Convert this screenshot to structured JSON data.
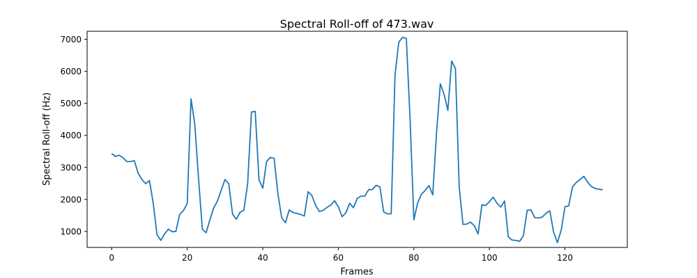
{
  "chart_data": {
    "type": "line",
    "title": "Spectral Roll-off of 473.wav",
    "xlabel": "Frames",
    "ylabel": "Spectral Roll-off (Hz)",
    "xlim": [
      -6.5,
      136.5
    ],
    "ylim": [
      500,
      7250
    ],
    "xticks": [
      0,
      20,
      40,
      60,
      80,
      100,
      120
    ],
    "yticks": [
      1000,
      2000,
      3000,
      4000,
      5000,
      6000,
      7000
    ],
    "grid": false,
    "legend": "none",
    "series": [
      {
        "color": "#1f77b4",
        "x": [
          0,
          1,
          2,
          3,
          4,
          5,
          6,
          7,
          8,
          9,
          10,
          11,
          12,
          13,
          14,
          15,
          16,
          17,
          18,
          19,
          20,
          21,
          22,
          23,
          24,
          25,
          26,
          27,
          28,
          29,
          30,
          31,
          32,
          33,
          34,
          35,
          36,
          37,
          38,
          39,
          40,
          41,
          42,
          43,
          44,
          45,
          46,
          47,
          48,
          49,
          50,
          51,
          52,
          53,
          54,
          55,
          56,
          57,
          58,
          59,
          60,
          61,
          62,
          63,
          64,
          65,
          66,
          67,
          68,
          69,
          70,
          71,
          72,
          73,
          74,
          75,
          76,
          77,
          78,
          79,
          80,
          81,
          82,
          83,
          84,
          85,
          86,
          87,
          88,
          89,
          90,
          91,
          92,
          93,
          94,
          95,
          96,
          97,
          98,
          99,
          100,
          101,
          102,
          103,
          104,
          105,
          106,
          107,
          108,
          109,
          110,
          111,
          112,
          113,
          114,
          115,
          116,
          117,
          118,
          119,
          120,
          121,
          122,
          123,
          124,
          125,
          126,
          127,
          128,
          129,
          130
        ],
        "y": [
          3430,
          3340,
          3380,
          3300,
          3180,
          3180,
          3210,
          2820,
          2620,
          2490,
          2590,
          1880,
          900,
          720,
          920,
          1070,
          990,
          1000,
          1530,
          1650,
          1870,
          5140,
          4350,
          2650,
          1070,
          960,
          1360,
          1730,
          1950,
          2290,
          2620,
          2490,
          1540,
          1380,
          1600,
          1660,
          2500,
          4730,
          4750,
          2610,
          2350,
          3180,
          3310,
          3280,
          2180,
          1430,
          1270,
          1670,
          1590,
          1560,
          1530,
          1480,
          2240,
          2120,
          1810,
          1620,
          1660,
          1750,
          1820,
          1960,
          1770,
          1460,
          1580,
          1880,
          1740,
          2030,
          2100,
          2100,
          2300,
          2310,
          2440,
          2390,
          1610,
          1550,
          1550,
          5880,
          6910,
          7060,
          7030,
          4500,
          1360,
          1890,
          2160,
          2280,
          2430,
          2140,
          4080,
          5610,
          5280,
          4780,
          6320,
          6090,
          2390,
          1220,
          1230,
          1290,
          1180,
          920,
          1830,
          1810,
          1930,
          2070,
          1880,
          1760,
          1950,
          830,
          730,
          720,
          690,
          870,
          1660,
          1670,
          1430,
          1420,
          1450,
          1570,
          1640,
          970,
          650,
          1040,
          1770,
          1800,
          2390,
          2530,
          2620,
          2720,
          2540,
          2400,
          2340,
          2320,
          2300
        ]
      }
    ]
  }
}
